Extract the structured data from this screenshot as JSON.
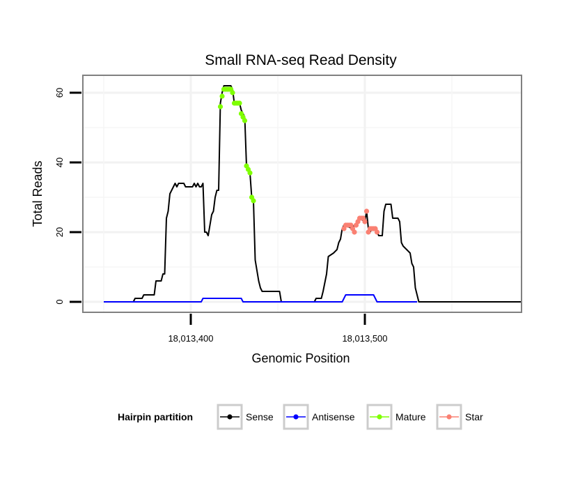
{
  "chart_data": {
    "type": "line",
    "title": "Small RNA-seq Read Density",
    "xlabel": "Genomic Position",
    "ylabel": "Total Reads",
    "xlim": [
      18013338,
      18013590
    ],
    "ylim": [
      -3,
      65
    ],
    "x_ticks": [
      {
        "value": 18013400,
        "label": "18,013,400"
      },
      {
        "value": 18013500,
        "label": "18,013,500"
      }
    ],
    "y_ticks": [
      {
        "value": 0,
        "label": "0"
      },
      {
        "value": 20,
        "label": "20"
      },
      {
        "value": 40,
        "label": "40"
      },
      {
        "value": 60,
        "label": "60"
      }
    ],
    "grid": true,
    "legend": {
      "title": "Hairpin partition",
      "position": "bottom",
      "entries": [
        {
          "name": "Sense",
          "color": "#000000"
        },
        {
          "name": "Antisense",
          "color": "#0000ff"
        },
        {
          "name": "Mature",
          "color": "#7fff00"
        },
        {
          "name": "Star",
          "color": "#fa8072"
        }
      ]
    },
    "series": [
      {
        "name": "Sense",
        "color": "#000000",
        "style": "line",
        "points": [
          [
            18013350,
            0
          ],
          [
            18013367,
            0
          ],
          [
            18013368,
            1
          ],
          [
            18013372,
            1
          ],
          [
            18013373,
            2
          ],
          [
            18013379,
            2
          ],
          [
            18013380,
            6
          ],
          [
            18013383,
            6
          ],
          [
            18013384,
            8
          ],
          [
            18013385,
            8
          ],
          [
            18013386,
            24
          ],
          [
            18013387,
            26
          ],
          [
            18013388,
            31
          ],
          [
            18013389,
            32
          ],
          [
            18013390,
            33
          ],
          [
            18013391,
            34
          ],
          [
            18013392,
            33
          ],
          [
            18013393,
            34
          ],
          [
            18013396,
            34
          ],
          [
            18013397,
            33
          ],
          [
            18013401,
            33
          ],
          [
            18013402,
            34
          ],
          [
            18013403,
            33
          ],
          [
            18013404,
            34
          ],
          [
            18013405,
            33
          ],
          [
            18013406,
            33
          ],
          [
            18013407,
            34
          ],
          [
            18013408,
            20
          ],
          [
            18013409,
            20
          ],
          [
            18013410,
            19
          ],
          [
            18013411,
            22
          ],
          [
            18013412,
            25
          ],
          [
            18013413,
            26
          ],
          [
            18013414,
            30
          ],
          [
            18013415,
            32
          ],
          [
            18013416,
            32
          ],
          [
            18013417,
            57
          ],
          [
            18013418,
            60
          ],
          [
            18013419,
            62
          ],
          [
            18013423,
            62
          ],
          [
            18013424,
            61
          ],
          [
            18013425,
            57
          ],
          [
            18013428,
            57
          ],
          [
            18013429,
            55
          ],
          [
            18013430,
            54
          ],
          [
            18013431,
            53
          ],
          [
            18013432,
            39
          ],
          [
            18013433,
            38
          ],
          [
            18013434,
            37
          ],
          [
            18013435,
            30
          ],
          [
            18013436,
            29
          ],
          [
            18013437,
            12
          ],
          [
            18013438,
            9
          ],
          [
            18013439,
            6
          ],
          [
            18013440,
            4
          ],
          [
            18013441,
            3
          ],
          [
            18013451,
            3
          ],
          [
            18013452,
            0
          ],
          [
            18013471,
            0
          ],
          [
            18013472,
            1
          ],
          [
            18013475,
            1
          ],
          [
            18013476,
            3
          ],
          [
            18013478,
            8
          ],
          [
            18013479,
            13
          ],
          [
            18013482,
            14
          ],
          [
            18013484,
            15
          ],
          [
            18013485,
            17
          ],
          [
            18013486,
            18
          ],
          [
            18013487,
            21
          ],
          [
            18013488,
            22
          ],
          [
            18013493,
            21
          ],
          [
            18013494,
            22
          ],
          [
            18013496,
            23
          ],
          [
            18013497,
            24
          ],
          [
            18013500,
            23
          ],
          [
            18013501,
            26
          ],
          [
            18013502,
            21
          ],
          [
            18013503,
            20
          ],
          [
            18013504,
            21
          ],
          [
            18013506,
            21
          ],
          [
            18013507,
            20
          ],
          [
            18013508,
            19
          ],
          [
            18013510,
            19
          ],
          [
            18013511,
            26
          ],
          [
            18013512,
            28
          ],
          [
            18013515,
            28
          ],
          [
            18013516,
            24
          ],
          [
            18013519,
            24
          ],
          [
            18013520,
            23
          ],
          [
            18013521,
            17
          ],
          [
            18013522,
            16
          ],
          [
            18013524,
            15
          ],
          [
            18013526,
            14
          ],
          [
            18013527,
            11
          ],
          [
            18013528,
            10
          ],
          [
            18013529,
            4
          ],
          [
            18013530,
            2
          ],
          [
            18013531,
            0
          ],
          [
            18013590,
            0
          ]
        ]
      },
      {
        "name": "Antisense",
        "color": "#0000ff",
        "style": "line",
        "points": [
          [
            18013350,
            0
          ],
          [
            18013406,
            0
          ],
          [
            18013407,
            1
          ],
          [
            18013429,
            1
          ],
          [
            18013430,
            0
          ],
          [
            18013487,
            0
          ],
          [
            18013489,
            2
          ],
          [
            18013505,
            2
          ],
          [
            18013507,
            0
          ],
          [
            18013530,
            0
          ]
        ]
      },
      {
        "name": "Mature",
        "color": "#7fff00",
        "style": "points",
        "points": [
          [
            18013417,
            56
          ],
          [
            18013418,
            59
          ],
          [
            18013419,
            61
          ],
          [
            18013420,
            61
          ],
          [
            18013421,
            61
          ],
          [
            18013422,
            61
          ],
          [
            18013423,
            61
          ],
          [
            18013424,
            60
          ],
          [
            18013425,
            57
          ],
          [
            18013426,
            57
          ],
          [
            18013427,
            57
          ],
          [
            18013428,
            57
          ],
          [
            18013429,
            54
          ],
          [
            18013430,
            53
          ],
          [
            18013431,
            52
          ],
          [
            18013432,
            39
          ],
          [
            18013433,
            38
          ],
          [
            18013434,
            37
          ],
          [
            18013435,
            30
          ],
          [
            18013436,
            29
          ]
        ]
      },
      {
        "name": "Star",
        "color": "#fa8072",
        "style": "points",
        "points": [
          [
            18013488,
            21
          ],
          [
            18013489,
            22
          ],
          [
            18013490,
            22
          ],
          [
            18013491,
            22
          ],
          [
            18013492,
            22
          ],
          [
            18013493,
            21
          ],
          [
            18013494,
            20
          ],
          [
            18013495,
            22
          ],
          [
            18013496,
            23
          ],
          [
            18013497,
            24
          ],
          [
            18013498,
            24
          ],
          [
            18013499,
            24
          ],
          [
            18013500,
            23
          ],
          [
            18013501,
            26
          ],
          [
            18013502,
            20
          ],
          [
            18013503,
            21
          ],
          [
            18013504,
            21
          ],
          [
            18013505,
            21
          ],
          [
            18013506,
            21
          ],
          [
            18013507,
            20
          ]
        ]
      }
    ]
  }
}
